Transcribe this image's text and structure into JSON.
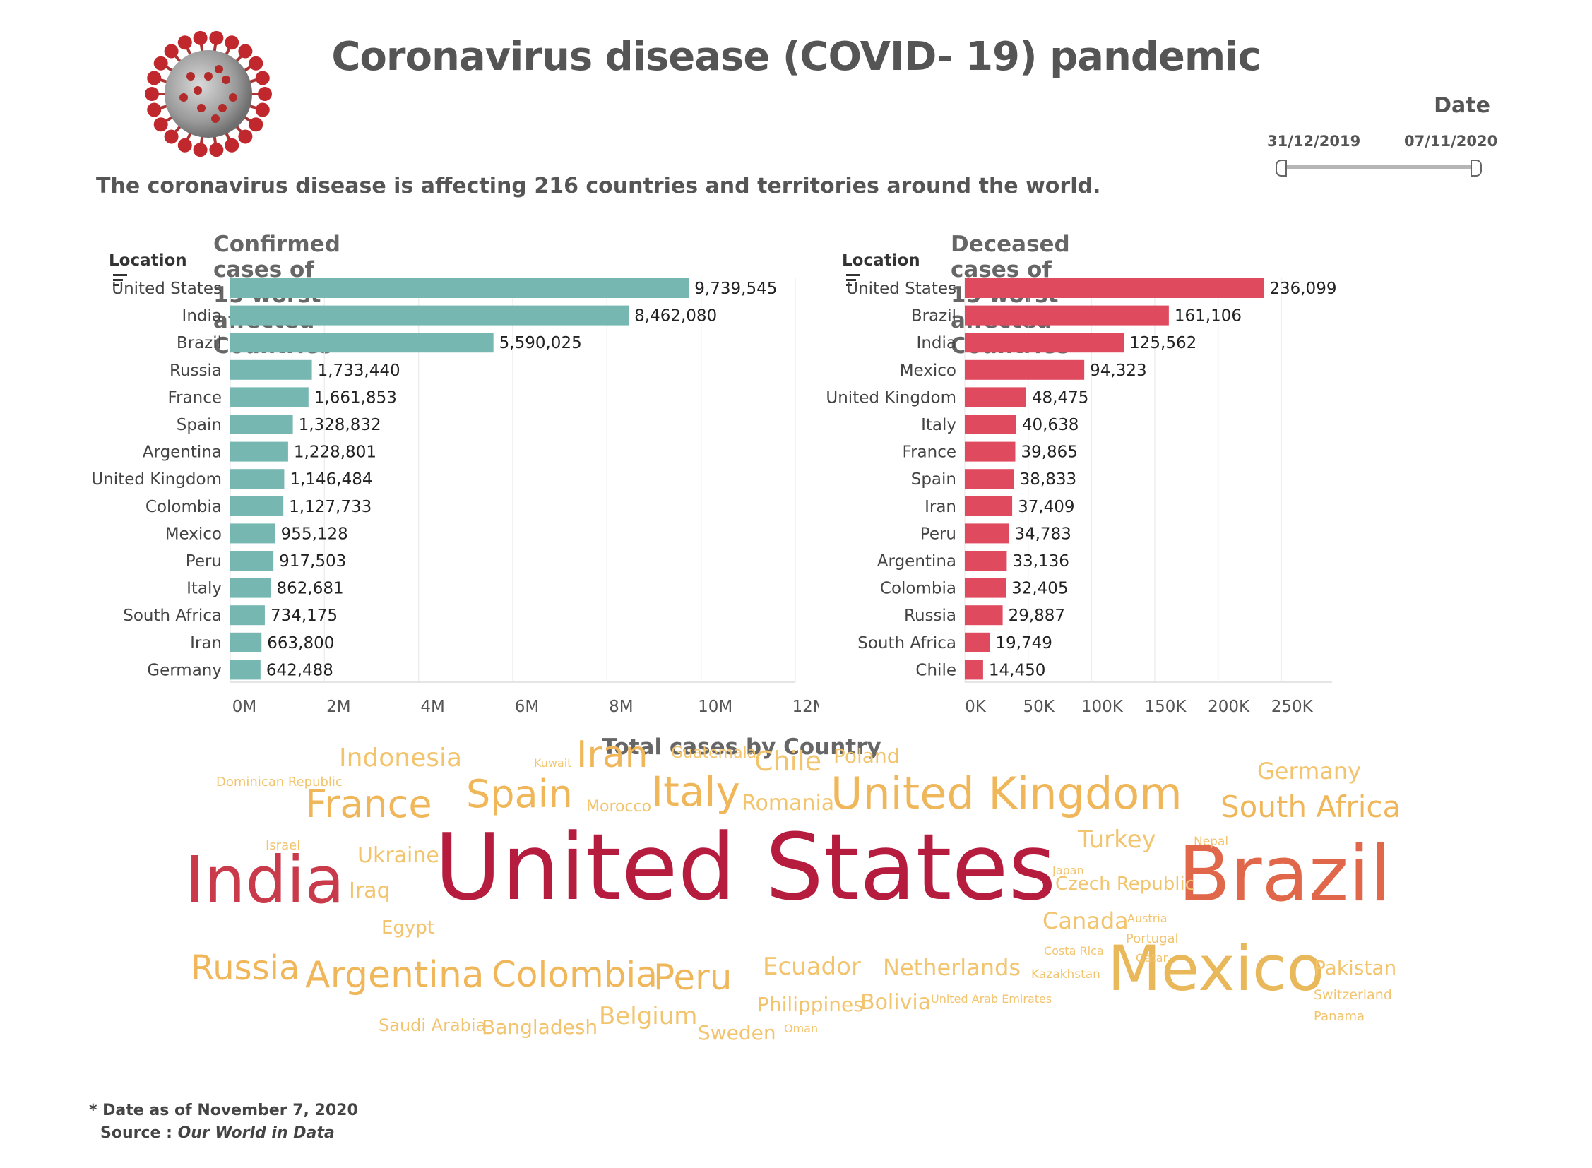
{
  "header": {
    "title": "Coronavirus disease (COVID- 19) pandemic",
    "subtitle": "The coronavirus disease is affecting 216 countries and territories around the world."
  },
  "date_filter": {
    "label": "Date",
    "start": "31/12/2019",
    "end": "07/11/2020"
  },
  "footer": {
    "note": "* Date as of November 7, 2020",
    "source_label": "Source : ",
    "source_name": "Our World in Data"
  },
  "chart_data": [
    {
      "type": "bar",
      "orientation": "horizontal",
      "title": "Confirmed cases of 15 worst affected Countries",
      "row_header": "Location",
      "color": "#76b7b2",
      "categories": [
        "United States",
        "India",
        "Brazil",
        "Russia",
        "France",
        "Spain",
        "Argentina",
        "United Kingdom",
        "Colombia",
        "Mexico",
        "Peru",
        "Italy",
        "South Africa",
        "Iran",
        "Germany"
      ],
      "values": [
        9739545,
        8462080,
        5590025,
        1733440,
        1661853,
        1328832,
        1228801,
        1146484,
        1127733,
        955128,
        917503,
        862681,
        734175,
        663800,
        642488
      ],
      "value_labels": [
        "9,739,545",
        "8,462,080",
        "5,590,025",
        "1,733,440",
        "1,661,853",
        "1,328,832",
        "1,228,801",
        "1,146,484",
        "1,127,733",
        "955,128",
        "917,503",
        "862,681",
        "734,175",
        "663,800",
        "642,488"
      ],
      "xlim": [
        0,
        12000000
      ],
      "xticks": [
        0,
        2000000,
        4000000,
        6000000,
        8000000,
        10000000,
        12000000
      ],
      "xtick_labels": [
        "0M",
        "2M",
        "4M",
        "6M",
        "8M",
        "10M",
        "12M"
      ],
      "grid": true
    },
    {
      "type": "bar",
      "orientation": "horizontal",
      "title": "Deceased cases of 15 worst affected Countries",
      "row_header": "Location",
      "color": "#e04a5f",
      "categories": [
        "United States",
        "Brazil",
        "India",
        "Mexico",
        "United Kingdom",
        "Italy",
        "France",
        "Spain",
        "Iran",
        "Peru",
        "Argentina",
        "Colombia",
        "Russia",
        "South Africa",
        "Chile"
      ],
      "values": [
        236099,
        161106,
        125562,
        94323,
        48475,
        40638,
        39865,
        38833,
        37409,
        34783,
        33136,
        32405,
        29887,
        19749,
        14450
      ],
      "value_labels": [
        "236,099",
        "161,106",
        "125,562",
        "94,323",
        "48,475",
        "40,638",
        "39,865",
        "38,833",
        "37,409",
        "34,783",
        "33,136",
        "32,405",
        "29,887",
        "19,749",
        "14,450"
      ],
      "xlim": [
        0,
        290000
      ],
      "xticks": [
        0,
        50000,
        100000,
        150000,
        200000,
        250000
      ],
      "xtick_labels": [
        "0K",
        "50K",
        "100K",
        "150K",
        "200K",
        "250K"
      ],
      "grid": true
    },
    {
      "type": "wordcloud",
      "title": "Total cases by Country",
      "words": [
        {
          "text": "United States",
          "color": "#b51c3e"
        },
        {
          "text": "Brazil",
          "color": "#e0674a"
        },
        {
          "text": "India",
          "color": "#c93a4a"
        },
        {
          "text": "Mexico",
          "color": "#e8b85a"
        },
        {
          "text": "United Kingdom",
          "color": "#f0b75a"
        },
        {
          "text": "Russia",
          "color": "#f0b75a"
        },
        {
          "text": "Argentina",
          "color": "#f0b75a"
        },
        {
          "text": "Colombia",
          "color": "#f0b75a"
        },
        {
          "text": "Peru",
          "color": "#f0b75a"
        },
        {
          "text": "Spain",
          "color": "#f0b75a"
        },
        {
          "text": "France",
          "color": "#f0b75a"
        },
        {
          "text": "Italy",
          "color": "#f0b75a"
        },
        {
          "text": "Iran",
          "color": "#f0b75a"
        },
        {
          "text": "South Africa",
          "color": "#f0b75a"
        },
        {
          "text": "Germany",
          "color": "#f3c46e"
        },
        {
          "text": "Indonesia",
          "color": "#f3c46e"
        },
        {
          "text": "Chile",
          "color": "#f3c46e"
        },
        {
          "text": "Turkey",
          "color": "#f3c46e"
        },
        {
          "text": "Ukraine",
          "color": "#f3c46e"
        },
        {
          "text": "Iraq",
          "color": "#f3c46e"
        },
        {
          "text": "Ecuador",
          "color": "#f3c46e"
        },
        {
          "text": "Netherlands",
          "color": "#f3c46e"
        },
        {
          "text": "Belgium",
          "color": "#f3c46e"
        },
        {
          "text": "Bolivia",
          "color": "#f3c46e"
        },
        {
          "text": "Philippines",
          "color": "#f3c46e"
        },
        {
          "text": "Bangladesh",
          "color": "#f3c46e"
        },
        {
          "text": "Saudi Arabia",
          "color": "#f3c46e"
        },
        {
          "text": "Sweden",
          "color": "#f3c46e"
        },
        {
          "text": "Canada",
          "color": "#f3c46e"
        },
        {
          "text": "Czech Republic",
          "color": "#f3c46e"
        },
        {
          "text": "Pakistan",
          "color": "#f3c46e"
        },
        {
          "text": "Egypt",
          "color": "#f3c46e"
        },
        {
          "text": "Romania",
          "color": "#f3c46e"
        },
        {
          "text": "Poland",
          "color": "#f3c46e"
        },
        {
          "text": "Guatemala",
          "color": "#f3c46e"
        },
        {
          "text": "Morocco",
          "color": "#f3c46e"
        },
        {
          "text": "Switzerland",
          "color": "#f3c46e"
        },
        {
          "text": "Panama",
          "color": "#f3c46e"
        },
        {
          "text": "Portugal",
          "color": "#f3c46e"
        },
        {
          "text": "Austria",
          "color": "#f3c46e"
        },
        {
          "text": "Qatar",
          "color": "#f3c46e"
        },
        {
          "text": "Kazakhstan",
          "color": "#f3c46e"
        },
        {
          "text": "Costa Rica",
          "color": "#f3c46e"
        },
        {
          "text": "United Arab Emirates",
          "color": "#f3c46e"
        },
        {
          "text": "Oman",
          "color": "#f3c46e"
        },
        {
          "text": "Japan",
          "color": "#f3c46e"
        },
        {
          "text": "Nepal",
          "color": "#f3c46e"
        },
        {
          "text": "Israel",
          "color": "#f3c46e"
        },
        {
          "text": "Kuwait",
          "color": "#f3c46e"
        },
        {
          "text": "Dominican Republic",
          "color": "#f3c46e"
        }
      ]
    }
  ]
}
